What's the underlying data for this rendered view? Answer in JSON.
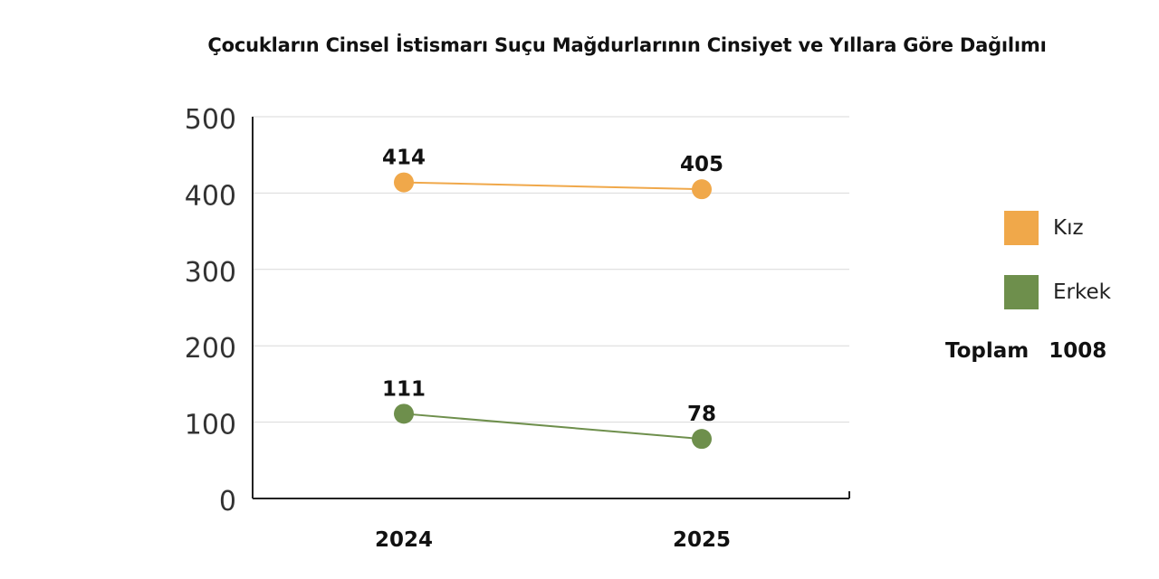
{
  "chart_data": {
    "type": "line",
    "title": "Çocukların Cinsel İstismarı Suçu  Mağdurlarının Cinsiyet ve Yıllara Göre Dağılımı",
    "categories": [
      "2024",
      "2025"
    ],
    "series": [
      {
        "name": "Kız",
        "values": [
          414,
          405
        ],
        "color": "#f0a84a"
      },
      {
        "name": "Erkek",
        "values": [
          111,
          78
        ],
        "color": "#6e8f4c"
      }
    ],
    "ylim": [
      0,
      500
    ],
    "yticks": [
      "0",
      "100",
      "200",
      "300",
      "400",
      "500"
    ],
    "grid": true,
    "legend_position": "right"
  },
  "legend": {
    "items": [
      {
        "label": "Kız",
        "color": "#f0a84a"
      },
      {
        "label": "Erkek",
        "color": "#6e8f4c"
      }
    ],
    "total_label": "Toplam",
    "total_value": "1008"
  }
}
